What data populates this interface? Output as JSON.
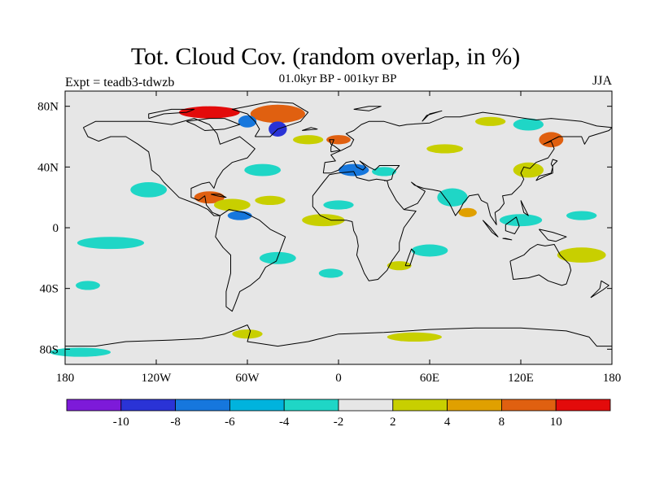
{
  "title": "Tot. Cloud Cov. (random overlap, in %)",
  "subtitle": "01.0kyr BP - 001kyr BP",
  "experiment": "Expt = teadb3-tdwzb",
  "season": "JJA",
  "map": {
    "lon_ticks": [
      "180",
      "120W",
      "60W",
      "0",
      "60E",
      "120E",
      "180"
    ],
    "lat_ticks": [
      "80N",
      "40N",
      "0",
      "40S",
      "80S"
    ],
    "lat_values": [
      80,
      40,
      0,
      -40,
      -80
    ],
    "lon_range": [
      -180,
      180
    ],
    "lat_range": [
      -90,
      90
    ],
    "background_color": "#e6e6e6"
  },
  "colorbar": {
    "colors": [
      "#7d1ad9",
      "#2a33d6",
      "#1677dd",
      "#00b3dd",
      "#1fd6c6",
      "#e6e6e6",
      "#c8cf00",
      "#e0a000",
      "#e06010",
      "#e30b0b"
    ],
    "labels": [
      "-10",
      "-8",
      "-6",
      "-4",
      "-2",
      "2",
      "4",
      "8",
      "10"
    ]
  },
  "anomalies": [
    {
      "lon": -150,
      "lat": -10,
      "rx": 22,
      "ry": 4,
      "color": "#1fd6c6"
    },
    {
      "lon": -165,
      "lat": -38,
      "rx": 8,
      "ry": 3,
      "color": "#1fd6c6"
    },
    {
      "lon": -125,
      "lat": 25,
      "rx": 12,
      "ry": 5,
      "color": "#1fd6c6"
    },
    {
      "lon": -85,
      "lat": 20,
      "rx": 10,
      "ry": 4,
      "color": "#e06010"
    },
    {
      "lon": -70,
      "lat": 15,
      "rx": 12,
      "ry": 4,
      "color": "#c8cf00"
    },
    {
      "lon": -65,
      "lat": 8,
      "rx": 8,
      "ry": 3,
      "color": "#1677dd"
    },
    {
      "lon": -45,
      "lat": 18,
      "rx": 10,
      "ry": 3,
      "color": "#c8cf00"
    },
    {
      "lon": -10,
      "lat": 5,
      "rx": 14,
      "ry": 4,
      "color": "#c8cf00"
    },
    {
      "lon": 0,
      "lat": 15,
      "rx": 10,
      "ry": 3,
      "color": "#1fd6c6"
    },
    {
      "lon": -40,
      "lat": -20,
      "rx": 12,
      "ry": 4,
      "color": "#1fd6c6"
    },
    {
      "lon": -5,
      "lat": -30,
      "rx": 8,
      "ry": 3,
      "color": "#1fd6c6"
    },
    {
      "lon": 60,
      "lat": -15,
      "rx": 12,
      "ry": 4,
      "color": "#1fd6c6"
    },
    {
      "lon": 40,
      "lat": -25,
      "rx": 8,
      "ry": 3,
      "color": "#c8cf00"
    },
    {
      "lon": 10,
      "lat": 38,
      "rx": 10,
      "ry": 4,
      "color": "#1677dd"
    },
    {
      "lon": 30,
      "lat": 37,
      "rx": 8,
      "ry": 3,
      "color": "#1fd6c6"
    },
    {
      "lon": -50,
      "lat": 38,
      "rx": 12,
      "ry": 4,
      "color": "#1fd6c6"
    },
    {
      "lon": 0,
      "lat": 58,
      "rx": 8,
      "ry": 3,
      "color": "#e06010"
    },
    {
      "lon": -20,
      "lat": 58,
      "rx": 10,
      "ry": 3,
      "color": "#c8cf00"
    },
    {
      "lon": 70,
      "lat": 52,
      "rx": 12,
      "ry": 3,
      "color": "#c8cf00"
    },
    {
      "lon": 100,
      "lat": 70,
      "rx": 10,
      "ry": 3,
      "color": "#c8cf00"
    },
    {
      "lon": 125,
      "lat": 68,
      "rx": 10,
      "ry": 4,
      "color": "#1fd6c6"
    },
    {
      "lon": 140,
      "lat": 58,
      "rx": 8,
      "ry": 5,
      "color": "#e06010"
    },
    {
      "lon": 125,
      "lat": 38,
      "rx": 10,
      "ry": 5,
      "color": "#c8cf00"
    },
    {
      "lon": 75,
      "lat": 20,
      "rx": 10,
      "ry": 6,
      "color": "#1fd6c6"
    },
    {
      "lon": 85,
      "lat": 10,
      "rx": 6,
      "ry": 3,
      "color": "#e0a000"
    },
    {
      "lon": 120,
      "lat": 5,
      "rx": 14,
      "ry": 4,
      "color": "#1fd6c6"
    },
    {
      "lon": 160,
      "lat": 8,
      "rx": 10,
      "ry": 3,
      "color": "#1fd6c6"
    },
    {
      "lon": 160,
      "lat": -18,
      "rx": 16,
      "ry": 5,
      "color": "#c8cf00"
    },
    {
      "lon": -40,
      "lat": 75,
      "rx": 18,
      "ry": 6,
      "color": "#e06010"
    },
    {
      "lon": -85,
      "lat": 76,
      "rx": 20,
      "ry": 4,
      "color": "#e30b0b"
    },
    {
      "lon": -40,
      "lat": 65,
      "rx": 6,
      "ry": 5,
      "color": "#2a33d6"
    },
    {
      "lon": -60,
      "lat": 70,
      "rx": 6,
      "ry": 4,
      "color": "#1677dd"
    },
    {
      "lon": -170,
      "lat": -82,
      "rx": 20,
      "ry": 3,
      "color": "#1fd6c6"
    },
    {
      "lon": 50,
      "lat": -72,
      "rx": 18,
      "ry": 3,
      "color": "#c8cf00"
    },
    {
      "lon": -60,
      "lat": -70,
      "rx": 10,
      "ry": 3,
      "color": "#c8cf00"
    }
  ],
  "coastlines": [
    [
      [
        -168,
        66
      ],
      [
        -160,
        70
      ],
      [
        -140,
        70
      ],
      [
        -125,
        70
      ],
      [
        -110,
        68
      ],
      [
        -95,
        72
      ],
      [
        -85,
        68
      ],
      [
        -80,
        62
      ],
      [
        -78,
        55
      ],
      [
        -65,
        60
      ],
      [
        -55,
        52
      ],
      [
        -60,
        46
      ],
      [
        -70,
        43
      ],
      [
        -76,
        38
      ],
      [
        -80,
        32
      ],
      [
        -82,
        26
      ],
      [
        -85,
        30
      ],
      [
        -90,
        29
      ],
      [
        -97,
        26
      ],
      [
        -97,
        20
      ],
      [
        -92,
        18
      ],
      [
        -88,
        21
      ],
      [
        -87,
        15
      ],
      [
        -83,
        10
      ],
      [
        -78,
        8
      ],
      [
        -82,
        8
      ],
      [
        -86,
        12
      ],
      [
        -92,
        15
      ],
      [
        -105,
        20
      ],
      [
        -110,
        25
      ],
      [
        -115,
        30
      ],
      [
        -118,
        34
      ],
      [
        -123,
        38
      ],
      [
        -124,
        45
      ],
      [
        -125,
        50
      ],
      [
        -132,
        55
      ],
      [
        -140,
        60
      ],
      [
        -150,
        60
      ],
      [
        -158,
        57
      ],
      [
        -165,
        60
      ],
      [
        -168,
        66
      ]
    ],
    [
      [
        -78,
        8
      ],
      [
        -72,
        12
      ],
      [
        -62,
        10
      ],
      [
        -52,
        5
      ],
      [
        -45,
        -1
      ],
      [
        -35,
        -6
      ],
      [
        -38,
        -14
      ],
      [
        -41,
        -22
      ],
      [
        -48,
        -26
      ],
      [
        -52,
        -33
      ],
      [
        -58,
        -38
      ],
      [
        -65,
        -42
      ],
      [
        -68,
        -50
      ],
      [
        -70,
        -55
      ],
      [
        -74,
        -52
      ],
      [
        -74,
        -42
      ],
      [
        -71,
        -30
      ],
      [
        -71,
        -18
      ],
      [
        -76,
        -13
      ],
      [
        -81,
        -6
      ],
      [
        -80,
        -1
      ],
      [
        -78,
        8
      ]
    ],
    [
      [
        -55,
        60
      ],
      [
        -45,
        60
      ],
      [
        -40,
        65
      ],
      [
        -25,
        70
      ],
      [
        -20,
        76
      ],
      [
        -30,
        82
      ],
      [
        -45,
        83
      ],
      [
        -60,
        80
      ],
      [
        -70,
        78
      ],
      [
        -60,
        75
      ],
      [
        -55,
        70
      ],
      [
        -52,
        65
      ],
      [
        -55,
        60
      ]
    ],
    [
      [
        -10,
        36
      ],
      [
        -9,
        43
      ],
      [
        -2,
        44
      ],
      [
        -5,
        48
      ],
      [
        2,
        51
      ],
      [
        8,
        54
      ],
      [
        10,
        58
      ],
      [
        5,
        62
      ],
      [
        10,
        64
      ],
      [
        15,
        68
      ],
      [
        20,
        70
      ],
      [
        30,
        70
      ],
      [
        40,
        67
      ],
      [
        45,
        68
      ],
      [
        60,
        69
      ],
      [
        70,
        73
      ],
      [
        80,
        73
      ],
      [
        95,
        76
      ],
      [
        110,
        74
      ],
      [
        130,
        71
      ],
      [
        140,
        72
      ],
      [
        160,
        70
      ],
      [
        170,
        67
      ],
      [
        180,
        66
      ]
    ],
    [
      [
        -10,
        36
      ],
      [
        -5,
        36
      ],
      [
        0,
        38
      ],
      [
        5,
        43
      ],
      [
        10,
        44
      ],
      [
        12,
        40
      ],
      [
        16,
        38
      ],
      [
        18,
        40
      ],
      [
        14,
        44
      ],
      [
        20,
        40
      ],
      [
        24,
        38
      ],
      [
        27,
        41
      ],
      [
        30,
        41
      ],
      [
        40,
        41
      ],
      [
        36,
        36
      ],
      [
        35,
        32
      ],
      [
        32,
        31
      ],
      [
        30,
        31
      ]
    ],
    [
      [
        -17,
        21
      ],
      [
        -17,
        14
      ],
      [
        -12,
        8
      ],
      [
        -5,
        5
      ],
      [
        5,
        5
      ],
      [
        9,
        4
      ],
      [
        10,
        -2
      ],
      [
        12,
        -6
      ],
      [
        13,
        -12
      ],
      [
        12,
        -18
      ],
      [
        15,
        -25
      ],
      [
        17,
        -30
      ],
      [
        20,
        -35
      ],
      [
        26,
        -34
      ],
      [
        32,
        -28
      ],
      [
        35,
        -22
      ],
      [
        40,
        -15
      ],
      [
        40,
        -10
      ],
      [
        43,
        0
      ],
      [
        51,
        11
      ],
      [
        43,
        12
      ],
      [
        38,
        18
      ],
      [
        33,
        27
      ],
      [
        32,
        31
      ],
      [
        25,
        32
      ],
      [
        20,
        31
      ],
      [
        12,
        33
      ],
      [
        10,
        37
      ],
      [
        0,
        36
      ],
      [
        -6,
        35
      ],
      [
        -10,
        30
      ],
      [
        -17,
        21
      ]
    ],
    [
      [
        43,
        12
      ],
      [
        52,
        16
      ],
      [
        56,
        22
      ],
      [
        57,
        24
      ],
      [
        52,
        27
      ],
      [
        48,
        30
      ],
      [
        50,
        28
      ],
      [
        56,
        26
      ],
      [
        62,
        25
      ],
      [
        67,
        24
      ],
      [
        70,
        20
      ],
      [
        73,
        16
      ],
      [
        77,
        8
      ],
      [
        80,
        12
      ],
      [
        82,
        16
      ],
      [
        86,
        21
      ],
      [
        92,
        22
      ],
      [
        94,
        18
      ],
      [
        98,
        16
      ],
      [
        100,
        8
      ],
      [
        104,
        2
      ],
      [
        103,
        10
      ],
      [
        106,
        12
      ],
      [
        109,
        16
      ],
      [
        108,
        21
      ],
      [
        114,
        22
      ],
      [
        120,
        28
      ],
      [
        122,
        32
      ],
      [
        120,
        36
      ],
      [
        122,
        40
      ],
      [
        126,
        39
      ],
      [
        130,
        43
      ],
      [
        138,
        46
      ],
      [
        142,
        52
      ],
      [
        140,
        57
      ],
      [
        135,
        55
      ],
      [
        145,
        60
      ],
      [
        160,
        60
      ],
      [
        162,
        55
      ],
      [
        165,
        60
      ],
      [
        178,
        64
      ],
      [
        180,
        66
      ]
    ],
    [
      [
        113,
        -22
      ],
      [
        115,
        -34
      ],
      [
        125,
        -33
      ],
      [
        132,
        -31
      ],
      [
        138,
        -35
      ],
      [
        147,
        -38
      ],
      [
        150,
        -37
      ],
      [
        153,
        -28
      ],
      [
        152,
        -24
      ],
      [
        146,
        -18
      ],
      [
        142,
        -11
      ],
      [
        136,
        -12
      ],
      [
        131,
        -11
      ],
      [
        126,
        -14
      ],
      [
        122,
        -18
      ],
      [
        113,
        -22
      ]
    ],
    [
      [
        -180,
        -78
      ],
      [
        -160,
        -78
      ],
      [
        -140,
        -75
      ],
      [
        -110,
        -74
      ],
      [
        -90,
        -73
      ],
      [
        -75,
        -70
      ],
      [
        -60,
        -64
      ],
      [
        -58,
        -68
      ],
      [
        -60,
        -75
      ],
      [
        -40,
        -78
      ],
      [
        -20,
        -75
      ],
      [
        0,
        -70
      ],
      [
        30,
        -69
      ],
      [
        60,
        -67
      ],
      [
        90,
        -66
      ],
      [
        120,
        -66
      ],
      [
        150,
        -68
      ],
      [
        165,
        -72
      ],
      [
        170,
        -78
      ],
      [
        180,
        -78
      ]
    ],
    [
      [
        -5,
        50
      ],
      [
        -5,
        53
      ],
      [
        -3,
        58
      ],
      [
        -6,
        58
      ],
      [
        -5,
        55
      ],
      [
        -3,
        54
      ],
      [
        1,
        51
      ],
      [
        -5,
        50
      ]
    ],
    [
      [
        130,
        31
      ],
      [
        132,
        34
      ],
      [
        136,
        35
      ],
      [
        140,
        36
      ],
      [
        141,
        40
      ],
      [
        140,
        42
      ],
      [
        141,
        45
      ],
      [
        144,
        44
      ],
      [
        141,
        41
      ],
      [
        141,
        36
      ],
      [
        136,
        34
      ],
      [
        130,
        31
      ]
    ],
    [
      [
        95,
        5
      ],
      [
        100,
        0
      ],
      [
        105,
        -6
      ],
      [
        101,
        -3
      ],
      [
        95,
        5
      ]
    ],
    [
      [
        108,
        -7
      ],
      [
        114,
        -8
      ],
      [
        110,
        -7
      ],
      [
        108,
        -7
      ]
    ],
    [
      [
        110,
        2
      ],
      [
        117,
        7
      ],
      [
        119,
        1
      ],
      [
        116,
        -4
      ],
      [
        110,
        -2
      ],
      [
        110,
        2
      ]
    ],
    [
      [
        132,
        -1
      ],
      [
        141,
        -3
      ],
      [
        150,
        -6
      ],
      [
        143,
        -9
      ],
      [
        138,
        -8
      ],
      [
        132,
        -1
      ]
    ],
    [
      [
        120,
        18
      ],
      [
        122,
        14
      ],
      [
        125,
        8
      ],
      [
        122,
        10
      ],
      [
        120,
        18
      ]
    ],
    [
      [
        44,
        -25
      ],
      [
        48,
        -14
      ],
      [
        50,
        -16
      ],
      [
        47,
        -25
      ],
      [
        44,
        -25
      ]
    ],
    [
      [
        -24,
        64
      ],
      [
        -14,
        65
      ],
      [
        -18,
        66
      ],
      [
        -24,
        64
      ]
    ],
    [
      [
        166,
        -46
      ],
      [
        174,
        -41
      ],
      [
        178,
        -38
      ],
      [
        173,
        -35
      ],
      [
        172,
        -40
      ],
      [
        166,
        -46
      ]
    ],
    [
      [
        -84,
        22
      ],
      [
        -78,
        22
      ],
      [
        -74,
        20
      ],
      [
        -80,
        21
      ],
      [
        -84,
        22
      ]
    ],
    [
      [
        -100,
        70
      ],
      [
        -85,
        72
      ],
      [
        -75,
        72
      ],
      [
        -65,
        68
      ],
      [
        -75,
        65
      ],
      [
        -88,
        64
      ],
      [
        -95,
        68
      ],
      [
        -100,
        70
      ]
    ],
    [
      [
        -125,
        72
      ],
      [
        -115,
        75
      ],
      [
        -100,
        76
      ],
      [
        -95,
        78
      ],
      [
        -110,
        78
      ],
      [
        -125,
        75
      ],
      [
        -125,
        72
      ]
    ],
    [
      [
        10,
        78
      ],
      [
        20,
        80
      ],
      [
        28,
        80
      ],
      [
        20,
        77
      ],
      [
        10,
        78
      ]
    ],
    [
      [
        55,
        70
      ],
      [
        60,
        75
      ],
      [
        68,
        77
      ],
      [
        58,
        74
      ],
      [
        55,
        70
      ]
    ]
  ]
}
